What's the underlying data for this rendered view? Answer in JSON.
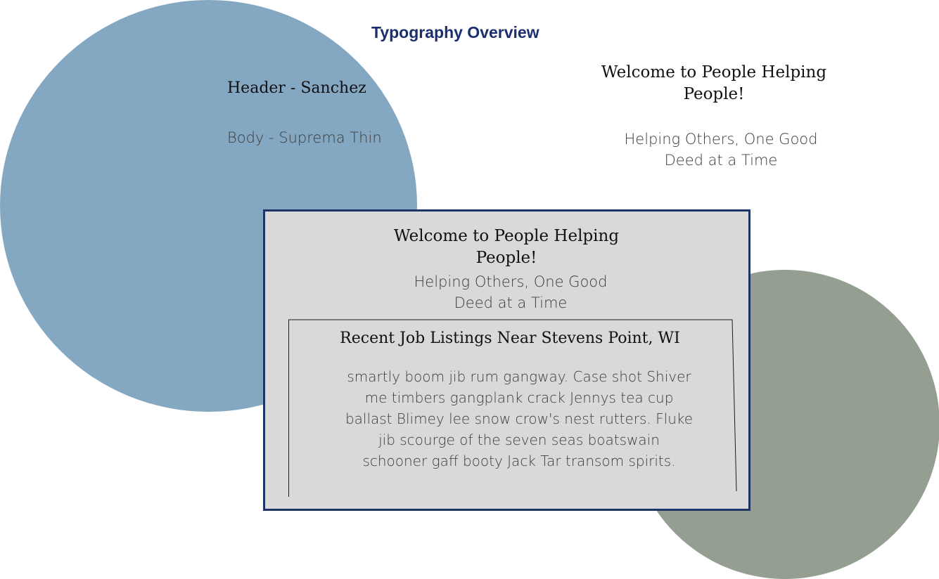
{
  "page": {
    "title": "Typography Overview"
  },
  "samples": {
    "header_label": "Header - Sanchez",
    "body_label": "Body - Suprema Thin"
  },
  "preview": {
    "welcome": "Welcome to People Helping People!",
    "tagline": "Helping Others, One Good Deed at a Time"
  },
  "mockup": {
    "welcome": "Welcome to People Helping People!",
    "tagline": "Helping Others, One Good Deed at a Time",
    "jobs_title": "Recent Job Listings Near Stevens Point, WI",
    "jobs_text": "smartly boom jib rum gangway. Case shot Shiver me timbers gangplank crack Jennys tea cup ballast Blimey lee snow crow's nest rutters. Fluke jib scourge of the seven seas boatswain schooner gaff booty Jack Tar transom spirits."
  },
  "colors": {
    "title": "#1b2e6e",
    "circle_blue": "#84a8c2",
    "circle_sage": "#959f91",
    "mockup_bg": "#d9d9d9",
    "mockup_border": "#1e3466"
  }
}
